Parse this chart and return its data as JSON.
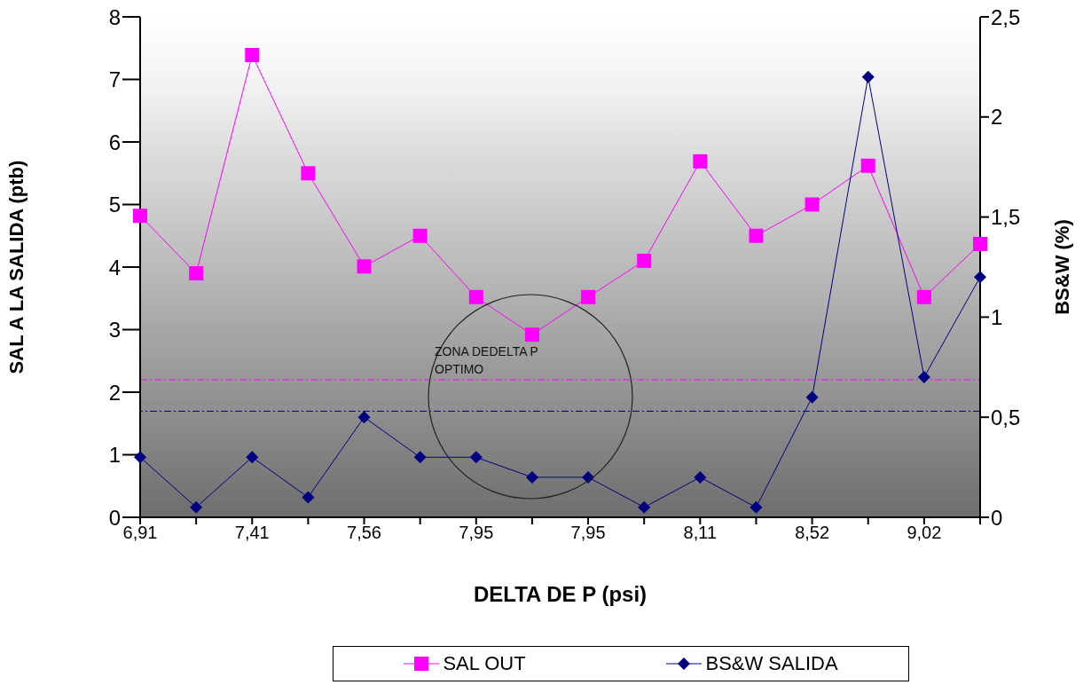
{
  "chart_data": {
    "type": "line",
    "xlabel": "DELTA DE P (psi)",
    "ylabel": "SAL  A LA SALIDA (ptb)",
    "y2label": "BS&W (%)",
    "categories": [
      "6,91",
      null,
      "7,41",
      null,
      "7,56",
      null,
      "7,95",
      null,
      "7,95",
      null,
      "8,11",
      null,
      "8,52",
      null,
      "9,02",
      null
    ],
    "series": [
      {
        "name": "SAL OUT",
        "color": "#ff00ff",
        "marker": "square",
        "values": [
          4.82,
          3.9,
          7.39,
          5.5,
          4.01,
          4.5,
          3.52,
          2.92,
          3.52,
          4.1,
          5.69,
          4.5,
          5.0,
          5.62,
          3.52,
          4.37
        ]
      },
      {
        "name": "BS&W SALIDA",
        "color": "#000080",
        "marker": "diamond",
        "axis": "y2",
        "values": [
          0.3,
          0.05,
          0.3,
          0.1,
          0.5,
          0.3,
          0.3,
          0.2,
          0.2,
          0.05,
          0.2,
          0.05,
          0.6,
          2.2,
          0.7,
          1.2
        ]
      }
    ],
    "ylim": [
      0,
      8
    ],
    "yticks": [
      0,
      1,
      2,
      3,
      4,
      5,
      6,
      7,
      8
    ],
    "y2lim": [
      0,
      2.5
    ],
    "y2ticks": [
      0,
      {
        "value": 0.5,
        "label": "0,5"
      },
      1,
      {
        "value": 1.5,
        "label": "1,5"
      },
      2,
      {
        "value": 2.5,
        "label": "2,5"
      }
    ],
    "ref_lines": [
      {
        "axis": "y",
        "value": 2.2,
        "color": "#ff00ff",
        "line_style": "dashed"
      },
      {
        "axis": "y2",
        "value": 0.53,
        "color": "#000080",
        "line_style": "dashed"
      }
    ],
    "annotations": [
      "ZONA DEDELTA P OPTIMO"
    ],
    "legend": "bottom"
  }
}
